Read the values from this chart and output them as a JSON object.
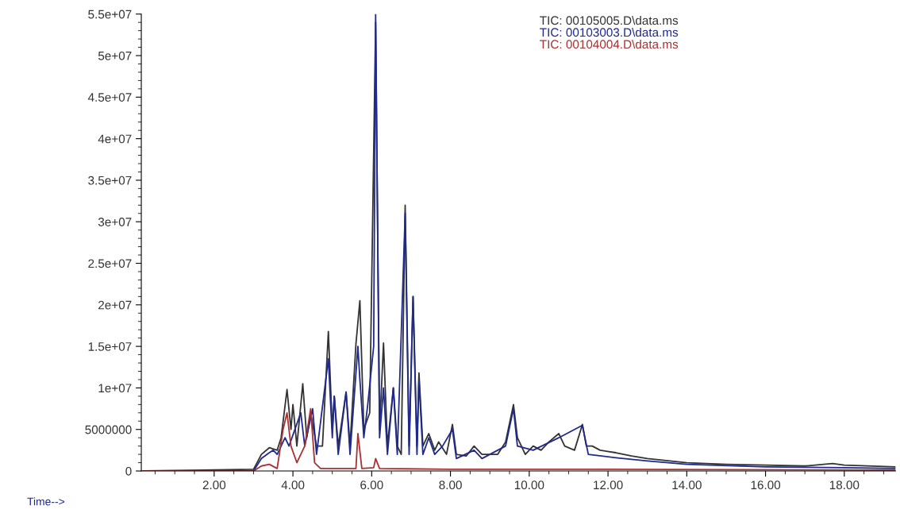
{
  "chart_data": {
    "type": "line",
    "xlabel": "Time-->",
    "xlim": [
      0.15,
      19.3
    ],
    "xticks": [
      {
        "value": 2,
        "label": "2.00"
      },
      {
        "value": 4,
        "label": "4.00"
      },
      {
        "value": 6,
        "label": "6.00"
      },
      {
        "value": 8,
        "label": "8.00"
      },
      {
        "value": 10,
        "label": "10.00"
      },
      {
        "value": 12,
        "label": "12.00"
      },
      {
        "value": 14,
        "label": "14.00"
      },
      {
        "value": 16,
        "label": "16.00"
      },
      {
        "value": 18,
        "label": "18.00"
      }
    ],
    "ylim": [
      0,
      55000000
    ],
    "yticks": [
      0,
      5000000,
      {
        "value": 10000000,
        "label": "1e+07"
      },
      {
        "value": 15000000,
        "label": "1.5e+07"
      },
      {
        "value": 20000000,
        "label": "2e+07"
      },
      {
        "value": 25000000,
        "label": "2.5e+07"
      },
      {
        "value": 30000000,
        "label": "3e+07"
      },
      {
        "value": 35000000,
        "label": "3.5e+07"
      },
      {
        "value": 40000000,
        "label": "4e+07"
      },
      {
        "value": 45000000,
        "label": "4.5e+07"
      },
      {
        "value": 50000000,
        "label": "5e+07"
      },
      {
        "value": 55000000,
        "label": "5.5e+07"
      }
    ],
    "grid": false,
    "legend": "top",
    "marker": "none",
    "line_style": "solid",
    "series": [
      {
        "name": "TIC: 00105005.D\\data.ms",
        "color": "#333333",
        "x": [
          0.2,
          3.0,
          3.2,
          3.4,
          3.6,
          3.7,
          3.85,
          3.95,
          4.0,
          4.1,
          4.25,
          4.35,
          4.45,
          4.6,
          4.75,
          4.9,
          5.0,
          5.05,
          5.15,
          5.35,
          5.45,
          5.6,
          5.7,
          5.8,
          5.95,
          6.1,
          6.2,
          6.3,
          6.4,
          6.55,
          6.65,
          6.75,
          6.85,
          6.95,
          7.05,
          7.15,
          7.2,
          7.3,
          7.45,
          7.6,
          7.7,
          7.9,
          8.05,
          8.15,
          8.4,
          8.6,
          8.8,
          9.2,
          9.4,
          9.6,
          9.7,
          9.9,
          10.1,
          10.3,
          10.5,
          10.75,
          10.9,
          11.15,
          11.35,
          11.45,
          11.6,
          11.8,
          12.2,
          12.6,
          13.0,
          14.0,
          15.0,
          16.0,
          17.0,
          17.7,
          18.0,
          19.3
        ],
        "values": [
          0,
          200000,
          2000000,
          2800000,
          2500000,
          4000000,
          9800000,
          5000000,
          8000000,
          3000000,
          10500000,
          4000000,
          7000000,
          3000000,
          3000000,
          16800000,
          5000000,
          9000000,
          3000000,
          9500000,
          3000000,
          15300000,
          20500000,
          5000000,
          7000000,
          54000000,
          5000000,
          15400000,
          3000000,
          10000000,
          3000000,
          2000000,
          32000000,
          3000000,
          21000000,
          3000000,
          11800000,
          3000000,
          4500000,
          2500000,
          3500000,
          2000000,
          5600000,
          2000000,
          1800000,
          3000000,
          2000000,
          2000000,
          3500000,
          8000000,
          4000000,
          2000000,
          3000000,
          2500000,
          3500000,
          4500000,
          3000000,
          2500000,
          5600000,
          3000000,
          3000000,
          2500000,
          2200000,
          1800000,
          1500000,
          1000000,
          800000,
          700000,
          600000,
          900000,
          700000,
          500000
        ]
      },
      {
        "name": "TIC: 00103003.D\\data.ms",
        "color": "#1f2a8c",
        "x": [
          0.2,
          3.0,
          3.2,
          3.4,
          3.5,
          3.6,
          3.8,
          3.9,
          4.2,
          4.3,
          4.5,
          4.6,
          4.9,
          5.0,
          5.05,
          5.15,
          5.35,
          5.45,
          5.65,
          5.7,
          5.8,
          5.9,
          6.05,
          6.1,
          6.2,
          6.3,
          6.4,
          6.55,
          6.65,
          6.85,
          6.95,
          7.05,
          7.15,
          7.2,
          7.3,
          7.45,
          7.6,
          7.8,
          8.05,
          8.15,
          8.6,
          8.8,
          9.4,
          9.6,
          9.7,
          10.1,
          10.75,
          11.35,
          11.5,
          12.2,
          13.0,
          14.0,
          16.0,
          18.0,
          19.3
        ],
        "values": [
          0,
          0,
          1500000,
          2200000,
          2500000,
          2000000,
          4000000,
          3000000,
          7000000,
          3000000,
          7500000,
          2000000,
          13500000,
          4000000,
          9000000,
          2000000,
          9500000,
          2000000,
          15000000,
          11000000,
          4000000,
          8000000,
          15000000,
          55000000,
          4000000,
          10000000,
          2000000,
          10000000,
          2000000,
          31000000,
          2000000,
          21000000,
          2000000,
          11000000,
          2000000,
          4000000,
          2000000,
          3000000,
          5000000,
          1500000,
          2500000,
          1500000,
          3000000,
          7500000,
          3000000,
          2500000,
          4000000,
          5500000,
          2000000,
          1600000,
          1200000,
          800000,
          500000,
          400000,
          300000
        ]
      },
      {
        "name": "TIC: 00104004.D\\data.ms",
        "color": "#a83232",
        "x": [
          0.2,
          3.0,
          3.2,
          3.4,
          3.6,
          3.75,
          3.85,
          3.95,
          4.1,
          4.3,
          4.45,
          4.55,
          4.7,
          5.6,
          5.65,
          5.75,
          6.05,
          6.1,
          6.2,
          8.0,
          12.0,
          19.3
        ],
        "values": [
          0,
          0,
          600000,
          800000,
          300000,
          5000000,
          7000000,
          3000000,
          1000000,
          3000000,
          7500000,
          1000000,
          300000,
          300000,
          4500000,
          300000,
          400000,
          1500000,
          300000,
          200000,
          200000,
          100000
        ]
      }
    ]
  }
}
